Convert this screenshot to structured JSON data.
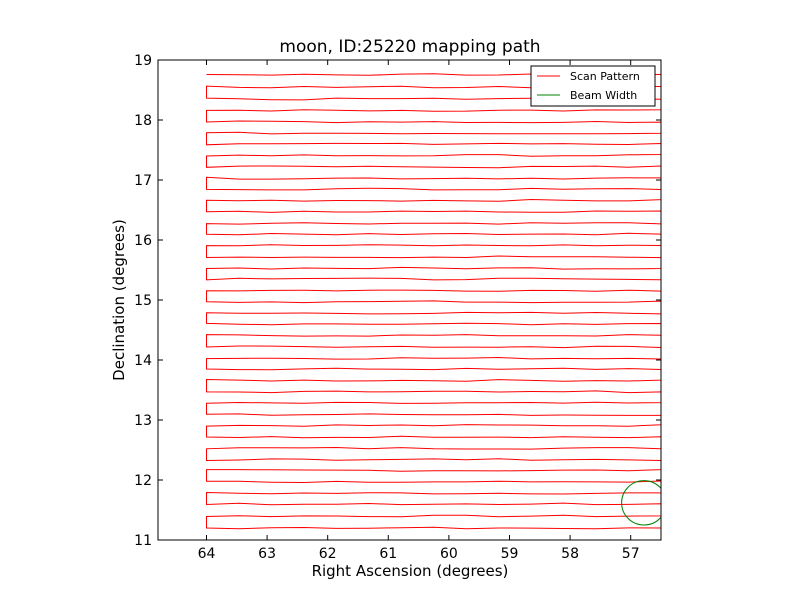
{
  "chart_data": {
    "type": "line",
    "title": "moon, ID:25220 mapping path",
    "xlabel": "Right Ascension (degrees)",
    "ylabel": "Declination (degrees)",
    "xlim": [
      64.8,
      56.5
    ],
    "ylim": [
      11,
      19
    ],
    "x_inverted": true,
    "xticks": [
      64,
      63,
      62,
      61,
      60,
      59,
      58,
      57
    ],
    "yticks": [
      11,
      12,
      13,
      14,
      15,
      16,
      17,
      18,
      19
    ],
    "legend_location": "top-right",
    "grid": false,
    "series": [
      {
        "name": "Scan Pattern",
        "color": "#ff0000",
        "pattern": "boustrophedon raster",
        "ra_range": [
          64.0,
          56.5
        ],
        "dec_range": [
          11.2,
          18.76
        ],
        "rows": [
          11.2,
          11.4,
          11.6,
          11.78,
          11.97,
          12.16,
          12.34,
          12.53,
          12.72,
          12.91,
          13.09,
          13.28,
          13.47,
          13.66,
          13.85,
          14.03,
          14.22,
          14.41,
          14.6,
          14.78,
          14.97,
          15.16,
          15.35,
          15.53,
          15.72,
          15.91,
          16.1,
          16.28,
          16.47,
          16.66,
          16.85,
          17.03,
          17.22,
          17.41,
          17.6,
          17.78,
          17.97,
          18.16,
          18.35,
          18.55,
          18.76
        ]
      },
      {
        "name": "Beam Width",
        "color": "#008000",
        "shape": "circle",
        "center": [
          56.78,
          11.62
        ],
        "radius_deg": 0.37
      }
    ]
  }
}
